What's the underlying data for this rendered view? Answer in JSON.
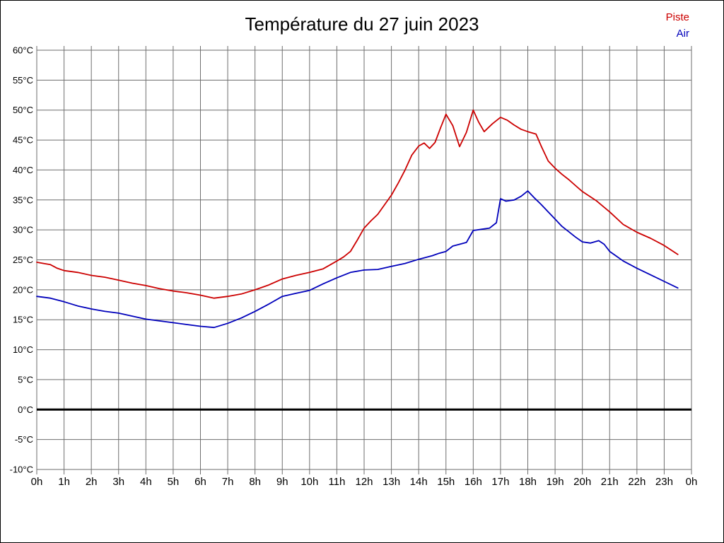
{
  "title": "Température du 27 juin 2023",
  "chart_data": {
    "type": "line",
    "title": "Température du 27 juin 2023",
    "xlabel": "",
    "ylabel": "",
    "xlim": [
      0,
      24
    ],
    "ylim": [
      -10,
      60
    ],
    "grid": true,
    "grid_color": "#6e6e6e",
    "zero_line": {
      "value": 0,
      "color": "#000000",
      "width": 3
    },
    "x_ticks": [
      "0h",
      "1h",
      "2h",
      "3h",
      "4h",
      "5h",
      "6h",
      "7h",
      "8h",
      "9h",
      "10h",
      "11h",
      "12h",
      "13h",
      "14h",
      "15h",
      "16h",
      "17h",
      "18h",
      "19h",
      "20h",
      "21h",
      "22h",
      "23h",
      "0h"
    ],
    "y_ticks": [
      {
        "value": 60,
        "label": "60°C"
      },
      {
        "value": 55,
        "label": "55°C"
      },
      {
        "value": 50,
        "label": "50°C"
      },
      {
        "value": 45,
        "label": "45°C"
      },
      {
        "value": 40,
        "label": "40°C"
      },
      {
        "value": 35,
        "label": "35°C"
      },
      {
        "value": 30,
        "label": "30°C"
      },
      {
        "value": 25,
        "label": "25°C"
      },
      {
        "value": 20,
        "label": "20°C"
      },
      {
        "value": 15,
        "label": "15°C"
      },
      {
        "value": 10,
        "label": "10°C"
      },
      {
        "value": 5,
        "label": "5°C"
      },
      {
        "value": 0,
        "label": "0°C"
      },
      {
        "value": -5,
        "label": "-5°C"
      },
      {
        "value": -10,
        "label": "-10°C"
      }
    ],
    "legend_position": "top-right",
    "legend": [
      {
        "label": "Piste",
        "color": "#cc0000"
      },
      {
        "label": "Air",
        "color": "#0000bb"
      }
    ],
    "series": [
      {
        "name": "Piste",
        "color": "#cc0000",
        "points": [
          [
            0,
            24.6
          ],
          [
            0.25,
            24.4
          ],
          [
            0.5,
            24.2
          ],
          [
            0.75,
            23.6
          ],
          [
            1,
            23.2
          ],
          [
            1.5,
            22.9
          ],
          [
            2,
            22.4
          ],
          [
            2.5,
            22.1
          ],
          [
            3,
            21.6
          ],
          [
            3.5,
            21.1
          ],
          [
            4,
            20.7
          ],
          [
            4.5,
            20.2
          ],
          [
            5,
            19.8
          ],
          [
            5.5,
            19.5
          ],
          [
            6,
            19.1
          ],
          [
            6.5,
            18.6
          ],
          [
            7,
            18.9
          ],
          [
            7.5,
            19.3
          ],
          [
            8,
            20.0
          ],
          [
            8.5,
            20.8
          ],
          [
            9,
            21.8
          ],
          [
            9.5,
            22.4
          ],
          [
            10,
            22.9
          ],
          [
            10.5,
            23.5
          ],
          [
            11,
            24.8
          ],
          [
            11.25,
            25.5
          ],
          [
            11.5,
            26.4
          ],
          [
            11.75,
            28.3
          ],
          [
            12,
            30.3
          ],
          [
            12.25,
            31.5
          ],
          [
            12.5,
            32.6
          ],
          [
            13,
            35.8
          ],
          [
            13.25,
            37.8
          ],
          [
            13.5,
            40.0
          ],
          [
            13.75,
            42.5
          ],
          [
            14,
            44.0
          ],
          [
            14.2,
            44.5
          ],
          [
            14.4,
            43.6
          ],
          [
            14.6,
            44.6
          ],
          [
            14.8,
            47.0
          ],
          [
            15,
            49.3
          ],
          [
            15.25,
            47.4
          ],
          [
            15.5,
            43.9
          ],
          [
            15.75,
            46.3
          ],
          [
            16,
            50.0
          ],
          [
            16.2,
            48.0
          ],
          [
            16.4,
            46.4
          ],
          [
            16.7,
            47.7
          ],
          [
            17,
            48.8
          ],
          [
            17.25,
            48.3
          ],
          [
            17.5,
            47.5
          ],
          [
            17.75,
            46.8
          ],
          [
            18,
            46.4
          ],
          [
            18.3,
            46.0
          ],
          [
            18.5,
            43.9
          ],
          [
            18.75,
            41.5
          ],
          [
            19,
            40.3
          ],
          [
            19.25,
            39.3
          ],
          [
            19.5,
            38.4
          ],
          [
            19.75,
            37.4
          ],
          [
            20,
            36.4
          ],
          [
            20.5,
            34.9
          ],
          [
            21,
            33.0
          ],
          [
            21.5,
            30.9
          ],
          [
            22,
            29.6
          ],
          [
            22.5,
            28.6
          ],
          [
            23,
            27.4
          ],
          [
            23.5,
            25.9
          ]
        ]
      },
      {
        "name": "Air",
        "color": "#0000bb",
        "points": [
          [
            0,
            18.9
          ],
          [
            0.5,
            18.6
          ],
          [
            1,
            18.0
          ],
          [
            1.5,
            17.3
          ],
          [
            2,
            16.8
          ],
          [
            2.5,
            16.4
          ],
          [
            3,
            16.1
          ],
          [
            3.5,
            15.6
          ],
          [
            4,
            15.1
          ],
          [
            4.5,
            14.8
          ],
          [
            5,
            14.5
          ],
          [
            5.5,
            14.2
          ],
          [
            6,
            13.9
          ],
          [
            6.5,
            13.7
          ],
          [
            7,
            14.4
          ],
          [
            7.5,
            15.3
          ],
          [
            8,
            16.4
          ],
          [
            8.5,
            17.6
          ],
          [
            9,
            18.9
          ],
          [
            9.5,
            19.4
          ],
          [
            10,
            19.9
          ],
          [
            10.5,
            21.0
          ],
          [
            11,
            22.0
          ],
          [
            11.5,
            22.9
          ],
          [
            12,
            23.3
          ],
          [
            12.5,
            23.4
          ],
          [
            13,
            23.9
          ],
          [
            13.5,
            24.4
          ],
          [
            14,
            25.1
          ],
          [
            14.5,
            25.7
          ],
          [
            14.75,
            26.1
          ],
          [
            15,
            26.4
          ],
          [
            15.25,
            27.3
          ],
          [
            15.5,
            27.6
          ],
          [
            15.75,
            27.9
          ],
          [
            16,
            29.9
          ],
          [
            16.3,
            30.1
          ],
          [
            16.6,
            30.3
          ],
          [
            16.85,
            31.2
          ],
          [
            17,
            35.2
          ],
          [
            17.2,
            34.8
          ],
          [
            17.5,
            35.0
          ],
          [
            17.75,
            35.6
          ],
          [
            18,
            36.5
          ],
          [
            18.25,
            35.3
          ],
          [
            18.5,
            34.2
          ],
          [
            18.75,
            33.0
          ],
          [
            19,
            31.8
          ],
          [
            19.25,
            30.6
          ],
          [
            19.5,
            29.7
          ],
          [
            19.75,
            28.8
          ],
          [
            20,
            28.0
          ],
          [
            20.3,
            27.8
          ],
          [
            20.6,
            28.2
          ],
          [
            20.8,
            27.6
          ],
          [
            21,
            26.4
          ],
          [
            21.25,
            25.6
          ],
          [
            21.5,
            24.8
          ],
          [
            22,
            23.6
          ],
          [
            22.5,
            22.5
          ],
          [
            23,
            21.4
          ],
          [
            23.5,
            20.3
          ]
        ]
      }
    ]
  }
}
